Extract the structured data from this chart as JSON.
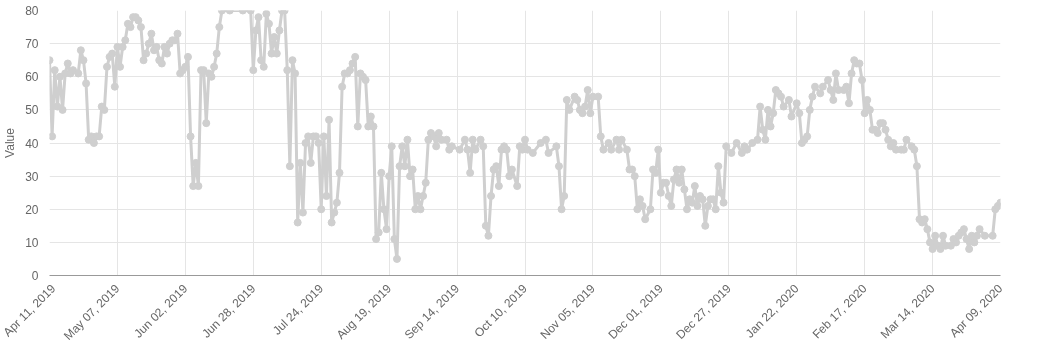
{
  "chart_data": {
    "type": "line",
    "ylabel": "Value",
    "marker": "circle",
    "line_style": "solid",
    "grid": true,
    "xlim": [
      "2019-04-11",
      "2020-04-09"
    ],
    "ylim": [
      0,
      80
    ],
    "yticks": [
      0,
      10,
      20,
      30,
      40,
      50,
      60,
      70,
      80
    ],
    "xticks": [
      {
        "value": "2019-04-11",
        "label": "Apr 11, 2019"
      },
      {
        "value": "2019-05-07",
        "label": "May 07, 2019"
      },
      {
        "value": "2019-06-02",
        "label": "Jun 02, 2019"
      },
      {
        "value": "2019-06-28",
        "label": "Jun 28, 2019"
      },
      {
        "value": "2019-07-24",
        "label": "Jul 24, 2019"
      },
      {
        "value": "2019-08-19",
        "label": "Aug 19, 2019"
      },
      {
        "value": "2019-09-14",
        "label": "Sep 14, 2019"
      },
      {
        "value": "2019-10-10",
        "label": "Oct 10, 2019"
      },
      {
        "value": "2019-11-05",
        "label": "Nov 05, 2019"
      },
      {
        "value": "2019-12-01",
        "label": "Dec 01, 2019"
      },
      {
        "value": "2019-12-27",
        "label": "Dec 27, 2019"
      },
      {
        "value": "2020-01-22",
        "label": "Jan 22, 2020"
      },
      {
        "value": "2020-02-17",
        "label": "Feb 17, 2020"
      },
      {
        "value": "2020-03-14",
        "label": "Mar 14, 2020"
      },
      {
        "value": "2020-04-09",
        "label": "Apr 09, 2020"
      }
    ],
    "series": [
      {
        "color": "#cfcfcf",
        "x": [
          "2019-04-11",
          "2019-04-12",
          "2019-04-13",
          "2019-04-14",
          "2019-04-15",
          "2019-04-16",
          "2019-04-17",
          "2019-04-18",
          "2019-04-19",
          "2019-04-20",
          "2019-04-22",
          "2019-04-23",
          "2019-04-24",
          "2019-04-25",
          "2019-04-26",
          "2019-04-27",
          "2019-04-28",
          "2019-04-29",
          "2019-04-30",
          "2019-05-01",
          "2019-05-02",
          "2019-05-03",
          "2019-05-04",
          "2019-05-05",
          "2019-05-06",
          "2019-05-07",
          "2019-05-08",
          "2019-05-09",
          "2019-05-10",
          "2019-05-11",
          "2019-05-12",
          "2019-05-13",
          "2019-05-14",
          "2019-05-15",
          "2019-05-16",
          "2019-05-17",
          "2019-05-18",
          "2019-05-19",
          "2019-05-20",
          "2019-05-21",
          "2019-05-22",
          "2019-05-23",
          "2019-05-24",
          "2019-05-25",
          "2019-05-26",
          "2019-05-27",
          "2019-05-28",
          "2019-05-29",
          "2019-05-30",
          "2019-05-31",
          "2019-06-01",
          "2019-06-02",
          "2019-06-03",
          "2019-06-04",
          "2019-06-05",
          "2019-06-06",
          "2019-06-07",
          "2019-06-08",
          "2019-06-09",
          "2019-06-10",
          "2019-06-11",
          "2019-06-12",
          "2019-06-13",
          "2019-06-14",
          "2019-06-15",
          "2019-06-16",
          "2019-06-19",
          "2019-06-24",
          "2019-06-27",
          "2019-06-28",
          "2019-06-29",
          "2019-06-30",
          "2019-07-01",
          "2019-07-02",
          "2019-07-03",
          "2019-07-04",
          "2019-07-05",
          "2019-07-06",
          "2019-07-07",
          "2019-07-08",
          "2019-07-09",
          "2019-07-10",
          "2019-07-11",
          "2019-07-12",
          "2019-07-13",
          "2019-07-14",
          "2019-07-15",
          "2019-07-16",
          "2019-07-17",
          "2019-07-18",
          "2019-07-19",
          "2019-07-20",
          "2019-07-21",
          "2019-07-22",
          "2019-07-23",
          "2019-07-24",
          "2019-07-25",
          "2019-07-26",
          "2019-07-27",
          "2019-07-28",
          "2019-07-29",
          "2019-07-30",
          "2019-07-31",
          "2019-08-01",
          "2019-08-02",
          "2019-08-03",
          "2019-08-04",
          "2019-08-05",
          "2019-08-06",
          "2019-08-07",
          "2019-08-08",
          "2019-08-09",
          "2019-08-10",
          "2019-08-11",
          "2019-08-12",
          "2019-08-13",
          "2019-08-14",
          "2019-08-15",
          "2019-08-16",
          "2019-08-17",
          "2019-08-18",
          "2019-08-19",
          "2019-08-20",
          "2019-08-21",
          "2019-08-22",
          "2019-08-23",
          "2019-08-24",
          "2019-08-25",
          "2019-08-26",
          "2019-08-27",
          "2019-08-28",
          "2019-08-29",
          "2019-08-30",
          "2019-08-31",
          "2019-09-01",
          "2019-09-02",
          "2019-09-03",
          "2019-09-04",
          "2019-09-05",
          "2019-09-06",
          "2019-09-07",
          "2019-09-08",
          "2019-09-10",
          "2019-09-11",
          "2019-09-12",
          "2019-09-15",
          "2019-09-17",
          "2019-09-18",
          "2019-09-19",
          "2019-09-20",
          "2019-09-21",
          "2019-09-23",
          "2019-09-24",
          "2019-09-25",
          "2019-09-26",
          "2019-09-27",
          "2019-09-28",
          "2019-09-29",
          "2019-09-30",
          "2019-10-01",
          "2019-10-02",
          "2019-10-03",
          "2019-10-04",
          "2019-10-05",
          "2019-10-07",
          "2019-10-08",
          "2019-10-09",
          "2019-10-10",
          "2019-10-11",
          "2019-10-13",
          "2019-10-16",
          "2019-10-18",
          "2019-10-19",
          "2019-10-22",
          "2019-10-23",
          "2019-10-24",
          "2019-10-25",
          "2019-10-26",
          "2019-10-27",
          "2019-10-29",
          "2019-10-30",
          "2019-10-31",
          "2019-11-01",
          "2019-11-02",
          "2019-11-03",
          "2019-11-04",
          "2019-11-05",
          "2019-11-07",
          "2019-11-08",
          "2019-11-09",
          "2019-11-11",
          "2019-11-12",
          "2019-11-14",
          "2019-11-15",
          "2019-11-16",
          "2019-11-18",
          "2019-11-19",
          "2019-11-20",
          "2019-11-21",
          "2019-11-22",
          "2019-11-23",
          "2019-11-24",
          "2019-11-25",
          "2019-11-27",
          "2019-11-28",
          "2019-11-29",
          "2019-11-30",
          "2019-12-01",
          "2019-12-02",
          "2019-12-03",
          "2019-12-04",
          "2019-12-05",
          "2019-12-06",
          "2019-12-07",
          "2019-12-08",
          "2019-12-09",
          "2019-12-10",
          "2019-12-11",
          "2019-12-12",
          "2019-12-13",
          "2019-12-14",
          "2019-12-15",
          "2019-12-16",
          "2019-12-17",
          "2019-12-18",
          "2019-12-19",
          "2019-12-20",
          "2019-12-21",
          "2019-12-22",
          "2019-12-23",
          "2019-12-24",
          "2019-12-25",
          "2019-12-26",
          "2019-12-28",
          "2019-12-30",
          "2020-01-01",
          "2020-01-02",
          "2020-01-03",
          "2020-01-05",
          "2020-01-07",
          "2020-01-08",
          "2020-01-09",
          "2020-01-10",
          "2020-01-11",
          "2020-01-12",
          "2020-01-13",
          "2020-01-14",
          "2020-01-15",
          "2020-01-16",
          "2020-01-17",
          "2020-01-19",
          "2020-01-20",
          "2020-01-22",
          "2020-01-23",
          "2020-01-24",
          "2020-01-25",
          "2020-01-26",
          "2020-01-27",
          "2020-01-28",
          "2020-01-29",
          "2020-01-31",
          "2020-02-01",
          "2020-02-03",
          "2020-02-04",
          "2020-02-05",
          "2020-02-06",
          "2020-02-07",
          "2020-02-09",
          "2020-02-10",
          "2020-02-11",
          "2020-02-12",
          "2020-02-13",
          "2020-02-14",
          "2020-02-15",
          "2020-02-16",
          "2020-02-17",
          "2020-02-18",
          "2020-02-19",
          "2020-02-20",
          "2020-02-21",
          "2020-02-22",
          "2020-02-23",
          "2020-02-24",
          "2020-02-25",
          "2020-02-26",
          "2020-02-27",
          "2020-02-28",
          "2020-02-29",
          "2020-03-02",
          "2020-03-03",
          "2020-03-04",
          "2020-03-06",
          "2020-03-07",
          "2020-03-08",
          "2020-03-09",
          "2020-03-10",
          "2020-03-11",
          "2020-03-12",
          "2020-03-13",
          "2020-03-14",
          "2020-03-15",
          "2020-03-16",
          "2020-03-17",
          "2020-03-18",
          "2020-03-19",
          "2020-03-21",
          "2020-03-22",
          "2020-03-23",
          "2020-03-24",
          "2020-03-25",
          "2020-03-26",
          "2020-03-27",
          "2020-03-28",
          "2020-03-29",
          "2020-03-30",
          "2020-03-31",
          "2020-04-01",
          "2020-04-03",
          "2020-04-06",
          "2020-04-07",
          "2020-04-08",
          "2020-04-09"
        ],
        "values": [
          65,
          42,
          62,
          51,
          60,
          50,
          61,
          64,
          61,
          62,
          61,
          68,
          65,
          58,
          41,
          42,
          40,
          42,
          42,
          51,
          50,
          63,
          66,
          67,
          57,
          69,
          63,
          69,
          71,
          76,
          75,
          78,
          78,
          77,
          75,
          65,
          67,
          70,
          73,
          68,
          69,
          65,
          64,
          69,
          67,
          70,
          71,
          71,
          73,
          61,
          62,
          63,
          66,
          42,
          27,
          34,
          27,
          62,
          62,
          46,
          61,
          60,
          63,
          67,
          75,
          80,
          80,
          80,
          80,
          62,
          74,
          78,
          65,
          63,
          79,
          76,
          67,
          72,
          67,
          74,
          80,
          80,
          62,
          33,
          65,
          61,
          16,
          34,
          19,
          40,
          42,
          34,
          42,
          42,
          40,
          20,
          42,
          24,
          47,
          16,
          19,
          22,
          31,
          57,
          61,
          61,
          62,
          64,
          66,
          45,
          61,
          60,
          59,
          45,
          48,
          45,
          11,
          13,
          31,
          20,
          14,
          30,
          39,
          11,
          5,
          33,
          39,
          33,
          41,
          30,
          32,
          20,
          24,
          20,
          24,
          28,
          41,
          43,
          42,
          39,
          43,
          41,
          41,
          38,
          39,
          38,
          41,
          38,
          31,
          41,
          38,
          41,
          39,
          15,
          12,
          24,
          32,
          33,
          27,
          38,
          39,
          38,
          30,
          32,
          27,
          39,
          38,
          41,
          38,
          37,
          40,
          41,
          37,
          39,
          33,
          20,
          24,
          53,
          50,
          54,
          53,
          50,
          49,
          51,
          56,
          49,
          54,
          54,
          42,
          38,
          40,
          38,
          41,
          38,
          41,
          38,
          32,
          32,
          30,
          20,
          23,
          21,
          17,
          20,
          32,
          31,
          38,
          25,
          28,
          28,
          24,
          21,
          29,
          32,
          28,
          32,
          26,
          20,
          23,
          22,
          27,
          21,
          24,
          23,
          15,
          21,
          23,
          23,
          20,
          33,
          25,
          22,
          39,
          37,
          40,
          37,
          39,
          38,
          40,
          41,
          51,
          44,
          41,
          50,
          45,
          49,
          56,
          55,
          54,
          51,
          53,
          48,
          52,
          49,
          40,
          41,
          42,
          50,
          54,
          57,
          55,
          57,
          59,
          56,
          53,
          61,
          56,
          56,
          57,
          52,
          61,
          65,
          64,
          64,
          59,
          49,
          53,
          50,
          44,
          44,
          43,
          46,
          46,
          44,
          41,
          39,
          40,
          38,
          38,
          38,
          41,
          39,
          38,
          33,
          17,
          16,
          17,
          14,
          10,
          8,
          12,
          9,
          8,
          12,
          9,
          9,
          11,
          10,
          12,
          13,
          14,
          11,
          8,
          12,
          10,
          12,
          14,
          12,
          12,
          20,
          21,
          22
        ]
      }
    ]
  }
}
